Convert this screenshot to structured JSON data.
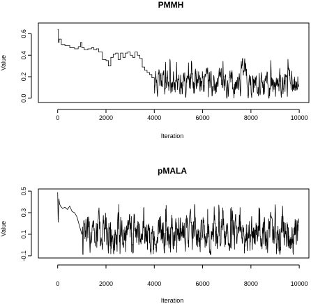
{
  "chart_data": [
    {
      "type": "line",
      "title": "PMMH",
      "xlabel": "Iteration",
      "ylabel": "Value",
      "xlim": [
        -800,
        10400
      ],
      "ylim": [
        -0.04,
        0.7
      ],
      "xticks": [
        0,
        2000,
        4000,
        6000,
        8000,
        10000
      ],
      "yticks": [
        0.0,
        0.2,
        0.4,
        0.6
      ],
      "xtick_labels": [
        "0",
        "2000",
        "4000",
        "6000",
        "8000",
        "10000"
      ],
      "ytick_labels": [
        "0.0",
        "0.2",
        "0.4",
        "0.6"
      ],
      "grid": false,
      "series": [
        {
          "x": [
            0,
            30,
            60,
            150,
            300,
            500,
            700,
            850,
            950,
            1000,
            1100,
            1250,
            1400,
            1500,
            1600,
            1700,
            1850,
            2000,
            2100,
            2200,
            2300,
            2400,
            2500,
            2600,
            2700,
            2800,
            2900,
            3000,
            3100,
            3200,
            3300,
            3400,
            3500,
            3600,
            3700,
            3800,
            3900,
            4000
          ],
          "y": [
            0.64,
            0.52,
            0.55,
            0.5,
            0.49,
            0.47,
            0.46,
            0.48,
            0.52,
            0.47,
            0.45,
            0.46,
            0.47,
            0.45,
            0.46,
            0.43,
            0.36,
            0.35,
            0.3,
            0.38,
            0.41,
            0.42,
            0.36,
            0.42,
            0.38,
            0.42,
            0.43,
            0.4,
            0.38,
            0.43,
            0.4,
            0.37,
            0.29,
            0.26,
            0.24,
            0.22,
            0.19,
            0.15
          ]
        }
      ],
      "noisy_segment": {
        "x_start": 4000,
        "x_end": 9980,
        "mean": 0.13,
        "min": 0.0,
        "max": 0.37,
        "peak_near": 7700
      }
    },
    {
      "type": "line",
      "title": "pMALA",
      "xlabel": "Iteration",
      "ylabel": "Value",
      "xlim": [
        -800,
        10400
      ],
      "ylim": [
        -0.12,
        0.52
      ],
      "xticks": [
        0,
        2000,
        4000,
        6000,
        8000,
        10000
      ],
      "yticks": [
        -0.1,
        0.1,
        0.3,
        0.5
      ],
      "xtick_labels": [
        "0",
        "2000",
        "4000",
        "6000",
        "8000",
        "10000"
      ],
      "ytick_labels": [
        "-0.1",
        "0.1",
        "0.3",
        "0.5"
      ],
      "grid": false,
      "series": [
        {
          "x": [
            0,
            20,
            50,
            80,
            120,
            200,
            300,
            400,
            500,
            600,
            700,
            800,
            900,
            1000
          ],
          "y": [
            0.49,
            0.21,
            0.43,
            0.38,
            0.36,
            0.34,
            0.35,
            0.33,
            0.36,
            0.31,
            0.3,
            0.26,
            0.18,
            0.1
          ]
        }
      ],
      "noisy_segment": {
        "x_start": 1000,
        "x_end": 9980,
        "mean": 0.1,
        "min": -0.09,
        "max": 0.38
      }
    }
  ]
}
